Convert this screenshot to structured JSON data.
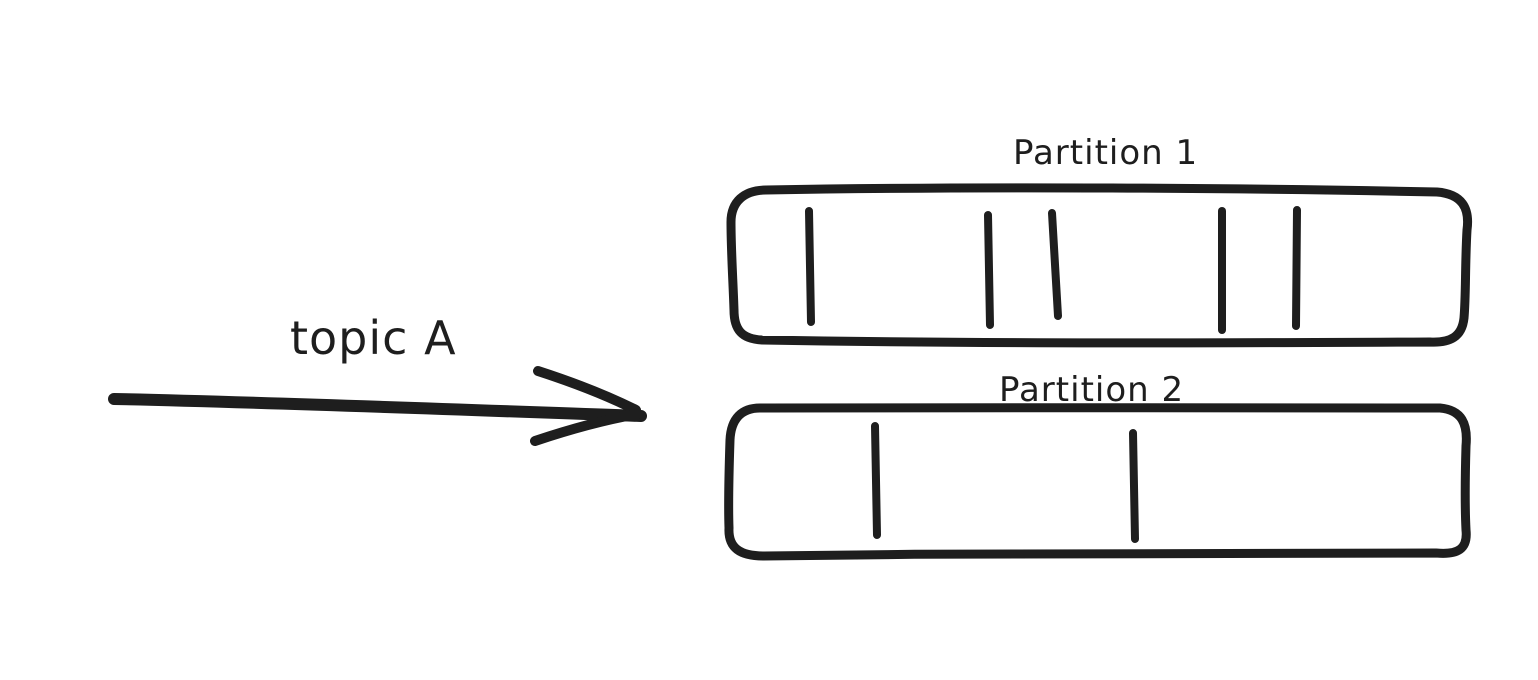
{
  "diagram": {
    "topic": {
      "label": "topic A"
    },
    "partitions": [
      {
        "label": "Partition 1",
        "record_count": 5
      },
      {
        "label": "Partition 2",
        "record_count": 2
      }
    ],
    "colors": {
      "ink": "#1e1e1e",
      "background": "#ffffff"
    }
  }
}
